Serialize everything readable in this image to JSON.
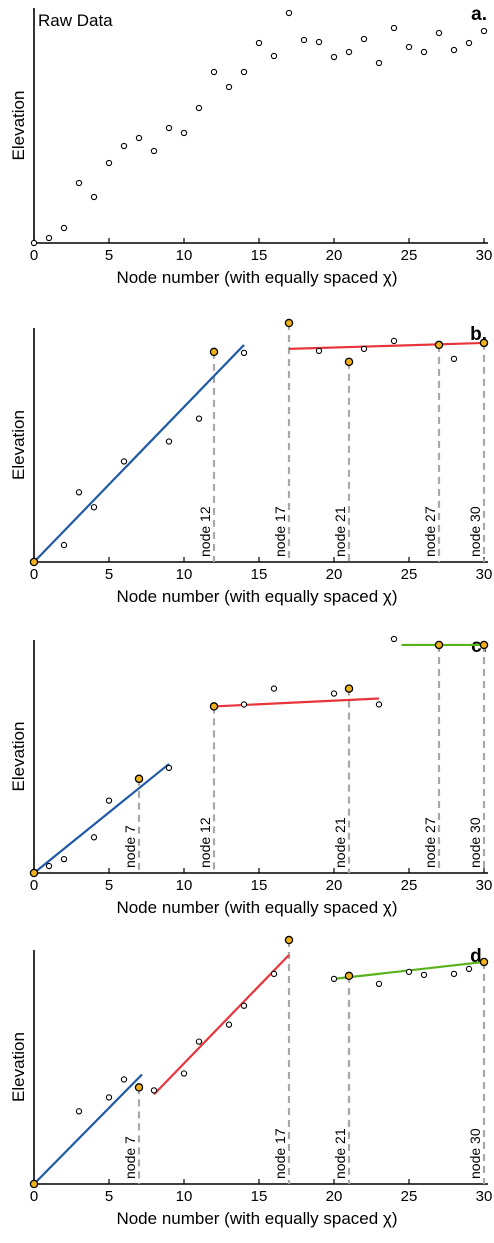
{
  "chart_data": [
    {
      "panel": "a.",
      "type": "scatter",
      "title": "Raw Data",
      "xlabel": "Node number (with equally spaced χ)",
      "ylabel": "Elevation",
      "xlim": [
        0,
        30
      ],
      "ylim": [
        0,
        23.5
      ],
      "xticks": [
        0,
        5,
        10,
        15,
        20,
        25,
        30
      ],
      "points": {
        "x": [
          0,
          1,
          2,
          3,
          4,
          5,
          6,
          7,
          8,
          9,
          10,
          11,
          12,
          13,
          14,
          15,
          16,
          17,
          18,
          19,
          20,
          21,
          22,
          23,
          24,
          25,
          26,
          27,
          28,
          29,
          30
        ],
        "y": [
          0,
          0.5,
          1.5,
          6.0,
          4.6,
          8.0,
          9.7,
          10.5,
          9.2,
          11.5,
          11.0,
          13.5,
          17.1,
          15.6,
          17.1,
          20.0,
          18.7,
          23.0,
          20.3,
          20.1,
          18.6,
          19.1,
          20.4,
          18.0,
          21.5,
          19.6,
          19.1,
          21.0,
          19.3,
          20.0,
          21.2
        ]
      },
      "fit_segments": [],
      "breakpoints": [],
      "grid": false
    },
    {
      "panel": "b.",
      "type": "scatter",
      "xlabel": "Node number (with equally spaced χ)",
      "ylabel": "Elevation",
      "xlim": [
        0,
        30
      ],
      "ylim": [
        0,
        23.5
      ],
      "xticks": [
        0,
        5,
        10,
        15,
        20,
        25,
        30
      ],
      "points": {
        "x": [
          2,
          3,
          4,
          6,
          9,
          11,
          14,
          19,
          22,
          24,
          28
        ],
        "y": [
          1.7,
          7.0,
          5.5,
          10.1,
          12.1,
          14.4,
          21.0,
          21.2,
          21.4,
          22.2,
          20.4
        ]
      },
      "breakpoints": [
        {
          "x": 0,
          "y": 0,
          "label": ""
        },
        {
          "x": 12,
          "y": 21.1,
          "label": "node 12"
        },
        {
          "x": 17,
          "y": 24.0,
          "label": "node 17"
        },
        {
          "x": 21,
          "y": 20.1,
          "label": "node 21"
        },
        {
          "x": 27,
          "y": 21.8,
          "label": "node 27"
        },
        {
          "x": 30,
          "y": 22.0,
          "label": "node 30"
        }
      ],
      "fit_segments": [
        {
          "color": "#1f5aa6",
          "x": [
            0,
            14
          ],
          "y": [
            0,
            21.8
          ]
        },
        {
          "color": "#e8343d",
          "x": [
            17,
            30
          ],
          "y": [
            21.4,
            22.0
          ]
        }
      ],
      "grid": false
    },
    {
      "panel": "c.",
      "type": "scatter",
      "xlabel": "Node number (with equally spaced χ)",
      "ylabel": "Elevation",
      "xlim": [
        0,
        30
      ],
      "ylim": [
        0,
        23.5
      ],
      "xticks": [
        0,
        5,
        10,
        15,
        20,
        25,
        30
      ],
      "points": {
        "x": [
          1,
          2,
          4,
          5,
          9,
          14,
          16,
          20,
          23,
          24
        ],
        "y": [
          0.7,
          1.4,
          3.6,
          7.3,
          10.6,
          17.0,
          18.6,
          18.1,
          17.0,
          23.6
        ]
      },
      "breakpoints": [
        {
          "x": 0,
          "y": 0,
          "label": ""
        },
        {
          "x": 7,
          "y": 9.5,
          "label": "node 7"
        },
        {
          "x": 12,
          "y": 16.8,
          "label": "node 12"
        },
        {
          "x": 21,
          "y": 18.6,
          "label": "node 21"
        },
        {
          "x": 27,
          "y": 23.0,
          "label": "node 27"
        },
        {
          "x": 30,
          "y": 23.0,
          "label": "node 30"
        }
      ],
      "fit_segments": [
        {
          "color": "#1f5aa6",
          "x": [
            0,
            9
          ],
          "y": [
            0,
            11.0
          ]
        },
        {
          "color": "#e8343d",
          "x": [
            12,
            23
          ],
          "y": [
            16.8,
            17.6
          ]
        },
        {
          "color": "#58b21a",
          "x": [
            24.5,
            30
          ],
          "y": [
            23.0,
            23.0
          ]
        }
      ],
      "grid": false
    },
    {
      "panel": "d.",
      "type": "scatter",
      "xlabel": "Node number (with equally spaced χ)",
      "ylabel": "Elevation",
      "xlim": [
        0,
        30
      ],
      "ylim": [
        0,
        23.5
      ],
      "xticks": [
        0,
        5,
        10,
        15,
        20,
        25,
        30
      ],
      "points": {
        "x": [
          3,
          5,
          6,
          8,
          10,
          11,
          13,
          14,
          16,
          20,
          23,
          25,
          26,
          28,
          29
        ],
        "y": [
          7.3,
          8.7,
          10.5,
          9.4,
          11.1,
          14.3,
          16.0,
          17.9,
          21.1,
          20.6,
          20.1,
          21.3,
          21.0,
          21.1,
          21.6
        ]
      },
      "breakpoints": [
        {
          "x": 0,
          "y": 0,
          "label": ""
        },
        {
          "x": 7,
          "y": 9.7,
          "label": "node 7"
        },
        {
          "x": 17,
          "y": 24.5,
          "label": "node 17"
        },
        {
          "x": 21,
          "y": 20.9,
          "label": "node 21"
        },
        {
          "x": 30,
          "y": 22.3,
          "label": "node 30"
        }
      ],
      "fit_segments": [
        {
          "color": "#1f5aa6",
          "x": [
            0,
            7.2
          ],
          "y": [
            0,
            11.0
          ]
        },
        {
          "color": "#e8343d",
          "x": [
            8,
            17
          ],
          "y": [
            9.0,
            23.0
          ]
        },
        {
          "color": "#58b21a",
          "x": [
            20,
            30
          ],
          "y": [
            20.6,
            22.3
          ]
        }
      ],
      "grid": false
    }
  ]
}
